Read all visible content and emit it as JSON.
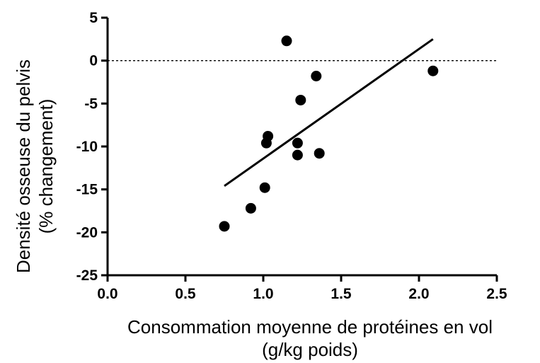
{
  "chart_data": {
    "type": "scatter",
    "title": "",
    "xlabel": "Consommation moyenne de protéines en vol",
    "xlabel_line2": "(g/kg poids)",
    "ylabel": "Densité osseuse du pelvis",
    "ylabel_line2": "(% changement)",
    "xlim": [
      0.0,
      2.5
    ],
    "ylim": [
      -25,
      5
    ],
    "xticks": [
      "0.0",
      "0.5",
      "1.0",
      "1.5",
      "2.0",
      "2.5"
    ],
    "xtick_values": [
      0.0,
      0.5,
      1.0,
      1.5,
      2.0,
      2.5
    ],
    "yticks": [
      "5",
      "0",
      "-5",
      "-10",
      "-15",
      "-20",
      "-25"
    ],
    "ytick_values": [
      5,
      0,
      -5,
      -10,
      -15,
      -20,
      -25
    ],
    "grid": false,
    "reference_line": {
      "y": 0,
      "style": "dotted"
    },
    "points": [
      {
        "x": 0.75,
        "y": -19.3
      },
      {
        "x": 0.92,
        "y": -17.2
      },
      {
        "x": 1.01,
        "y": -14.8
      },
      {
        "x": 1.02,
        "y": -9.6
      },
      {
        "x": 1.03,
        "y": -8.8
      },
      {
        "x": 1.15,
        "y": 2.3
      },
      {
        "x": 1.22,
        "y": -9.6
      },
      {
        "x": 1.22,
        "y": -11.0
      },
      {
        "x": 1.24,
        "y": -4.6
      },
      {
        "x": 1.34,
        "y": -1.8
      },
      {
        "x": 1.36,
        "y": -10.8
      },
      {
        "x": 2.09,
        "y": -1.2
      }
    ],
    "fit_line": {
      "x1": 0.75,
      "y1": -14.6,
      "x2": 2.09,
      "y2": 2.5
    }
  }
}
